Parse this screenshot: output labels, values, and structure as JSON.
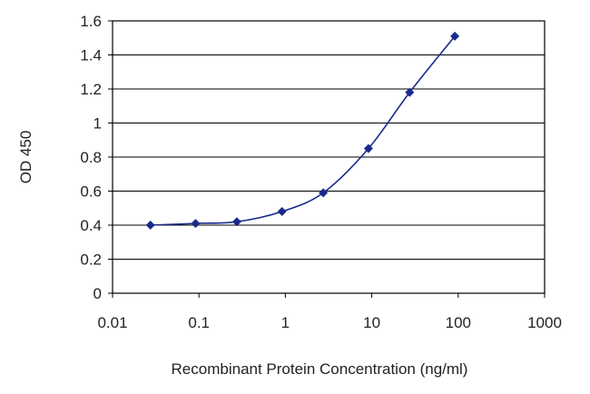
{
  "chart_data": {
    "type": "line",
    "title": "",
    "xlabel": "Recombinant Protein Concentration (ng/ml)",
    "ylabel": "OD 450",
    "x_scale": "log",
    "xlim": [
      0.01,
      1000
    ],
    "ylim": [
      0,
      1.6
    ],
    "x_ticks": [
      "0.01",
      "0.1",
      "1",
      "10",
      "100",
      "1000"
    ],
    "y_ticks": [
      "0",
      "0.2",
      "0.4",
      "0.6",
      "0.8",
      "1",
      "1.2",
      "1.4",
      "1.6"
    ],
    "grid": "horizontal",
    "legend": "none",
    "series": [
      {
        "color": "#1a2a8c",
        "marker": "diamond",
        "x": [
          0.0274,
          0.0914,
          0.2743,
          0.914,
          2.743,
          9.14,
          27.43,
          91.4
        ],
        "y": [
          0.4,
          0.41,
          0.42,
          0.48,
          0.59,
          0.85,
          1.18,
          1.51
        ]
      }
    ]
  }
}
